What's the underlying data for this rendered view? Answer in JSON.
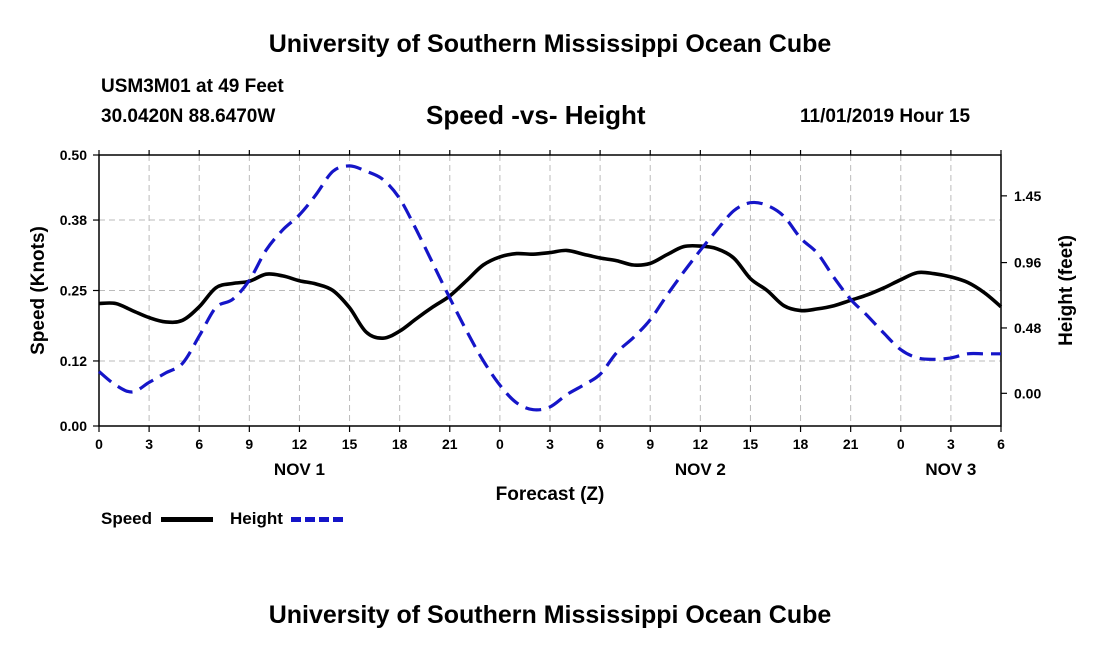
{
  "page": {
    "title_top": "University of Southern Mississippi Ocean Cube",
    "title_bottom": "University of Southern Mississippi Ocean Cube",
    "station": "USM3M01 at 49 Feet",
    "coords": "30.0420N 88.6470W",
    "date": "11/01/2019 Hour 15"
  },
  "legend": {
    "speed_label": "Speed",
    "height_label": "Height"
  },
  "colors": {
    "speed": "#000000",
    "height": "#1515c8",
    "grid": "#bbbbbb"
  },
  "chart_data": {
    "type": "line",
    "title": "Speed -vs- Height",
    "xlabel": "Forecast (Z)",
    "ylabel": "Speed (Knots)",
    "y2label": "Height (feet)",
    "xlim": [
      0,
      54
    ],
    "ylim": [
      0,
      0.5
    ],
    "y2lim": [
      -0.24,
      1.75
    ],
    "x_ticks": [
      0,
      3,
      6,
      9,
      12,
      15,
      18,
      21,
      24,
      27,
      30,
      33,
      36,
      39,
      42,
      45,
      48,
      51,
      54
    ],
    "x_tick_labels": [
      "0",
      "3",
      "6",
      "9",
      "12",
      "15",
      "18",
      "21",
      "0",
      "3",
      "6",
      "9",
      "12",
      "15",
      "18",
      "21",
      "0",
      "3",
      "6"
    ],
    "day_labels": [
      {
        "x": 12,
        "label": "NOV 1"
      },
      {
        "x": 36,
        "label": "NOV 2"
      },
      {
        "x": 51,
        "label": "NOV 3"
      }
    ],
    "y_ticks": [
      0.0,
      0.12,
      0.25,
      0.38,
      0.5
    ],
    "y_tick_labels": [
      "0.00",
      "0.12",
      "0.25",
      "0.38",
      "0.50"
    ],
    "y2_ticks": [
      0.0,
      0.48,
      0.96,
      1.45
    ],
    "y2_tick_labels": [
      "0.00",
      "0.48",
      "0.96",
      "1.45"
    ],
    "series": [
      {
        "name": "Speed",
        "axis": "left",
        "style": "solid",
        "x": [
          0,
          1,
          2,
          3,
          4,
          5,
          6,
          7,
          8,
          9,
          10,
          11,
          12,
          13,
          14,
          15,
          16,
          17,
          18,
          19,
          20,
          21,
          22,
          23,
          24,
          25,
          26,
          27,
          28,
          29,
          30,
          31,
          32,
          33,
          34,
          35,
          36,
          37,
          38,
          39,
          40,
          41,
          42,
          43,
          44,
          45,
          46,
          47,
          48,
          49,
          50,
          51,
          52,
          53,
          54
        ],
        "values": [
          0.226,
          0.226,
          0.213,
          0.2,
          0.192,
          0.195,
          0.22,
          0.255,
          0.263,
          0.267,
          0.28,
          0.277,
          0.268,
          0.262,
          0.25,
          0.218,
          0.173,
          0.162,
          0.175,
          0.198,
          0.22,
          0.24,
          0.268,
          0.297,
          0.312,
          0.318,
          0.317,
          0.32,
          0.324,
          0.317,
          0.31,
          0.305,
          0.297,
          0.3,
          0.316,
          0.331,
          0.332,
          0.327,
          0.31,
          0.272,
          0.25,
          0.222,
          0.213,
          0.216,
          0.222,
          0.232,
          0.242,
          0.255,
          0.27,
          0.283,
          0.281,
          0.275,
          0.265,
          0.246,
          0.22
        ]
      },
      {
        "name": "Height",
        "axis": "right",
        "style": "dashed",
        "x": [
          0,
          1,
          2,
          3,
          4,
          5,
          6,
          7,
          8,
          9,
          10,
          11,
          12,
          13,
          14,
          15,
          16,
          17,
          18,
          19,
          20,
          21,
          22,
          23,
          24,
          25,
          26,
          27,
          28,
          29,
          30,
          31,
          32,
          33,
          34,
          35,
          36,
          37,
          38,
          39,
          40,
          41,
          42,
          43,
          44,
          45,
          46,
          47,
          48,
          49,
          50,
          51,
          52,
          53,
          54
        ],
        "values": [
          0.16,
          0.06,
          0.01,
          0.08,
          0.15,
          0.22,
          0.42,
          0.63,
          0.69,
          0.83,
          1.05,
          1.2,
          1.31,
          1.46,
          1.63,
          1.67,
          1.63,
          1.57,
          1.43,
          1.2,
          0.95,
          0.7,
          0.46,
          0.24,
          0.06,
          -0.07,
          -0.12,
          -0.1,
          -0.01,
          0.06,
          0.14,
          0.3,
          0.41,
          0.54,
          0.72,
          0.89,
          1.05,
          1.2,
          1.34,
          1.4,
          1.38,
          1.3,
          1.14,
          1.03,
          0.85,
          0.69,
          0.57,
          0.44,
          0.32,
          0.26,
          0.25,
          0.26,
          0.29,
          0.29,
          0.29
        ]
      }
    ]
  }
}
